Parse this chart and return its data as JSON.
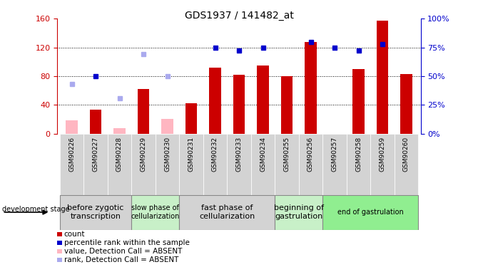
{
  "title": "GDS1937 / 141482_at",
  "samples": [
    "GSM90226",
    "GSM90227",
    "GSM90228",
    "GSM90229",
    "GSM90230",
    "GSM90231",
    "GSM90232",
    "GSM90233",
    "GSM90234",
    "GSM90255",
    "GSM90256",
    "GSM90257",
    "GSM90258",
    "GSM90259",
    "GSM90260"
  ],
  "bar_values": [
    null,
    33,
    null,
    62,
    null,
    42,
    92,
    82,
    95,
    80,
    128,
    null,
    90,
    157,
    83
  ],
  "bar_absent": [
    18,
    null,
    7,
    null,
    20,
    null,
    null,
    null,
    null,
    null,
    null,
    null,
    null,
    null,
    null
  ],
  "dot_values_pct": [
    null,
    50,
    null,
    null,
    null,
    null,
    75,
    72,
    75,
    null,
    80,
    75,
    72,
    78,
    null
  ],
  "dot_absent_pct": [
    43,
    null,
    31,
    69,
    50,
    null,
    null,
    null,
    null,
    null,
    null,
    null,
    null,
    null,
    null
  ],
  "ylim_left": [
    0,
    160
  ],
  "ylim_right": [
    0,
    100
  ],
  "yticks_left": [
    0,
    40,
    80,
    120,
    160
  ],
  "yticks_right": [
    0,
    25,
    50,
    75,
    100
  ],
  "ytick_labels_right": [
    "0%",
    "25%",
    "50%",
    "75%",
    "100%"
  ],
  "stages": [
    {
      "label": "before zygotic\ntranscription",
      "start": 0,
      "end": 3,
      "color": "#d3d3d3",
      "fontsize": 8
    },
    {
      "label": "slow phase of\ncellularization",
      "start": 3,
      "end": 5,
      "color": "#c8f0c8",
      "fontsize": 7
    },
    {
      "label": "fast phase of\ncellularization",
      "start": 5,
      "end": 9,
      "color": "#d3d3d3",
      "fontsize": 8
    },
    {
      "label": "beginning of\ngastrulation",
      "start": 9,
      "end": 11,
      "color": "#c8f0c8",
      "fontsize": 8
    },
    {
      "label": "end of gastrulation",
      "start": 11,
      "end": 15,
      "color": "#90EE90",
      "fontsize": 7
    }
  ],
  "bar_color": "#cc0000",
  "bar_absent_color": "#ffb6c1",
  "dot_color": "#0000cc",
  "dot_absent_color": "#aaaaee",
  "background_color": "#ffffff",
  "tick_cell_color": "#d3d3d3",
  "legend_items": [
    {
      "color": "#cc0000",
      "label": "count"
    },
    {
      "color": "#0000cc",
      "label": "percentile rank within the sample"
    },
    {
      "color": "#ffb6c1",
      "label": "value, Detection Call = ABSENT"
    },
    {
      "color": "#aaaaee",
      "label": "rank, Detection Call = ABSENT"
    }
  ]
}
